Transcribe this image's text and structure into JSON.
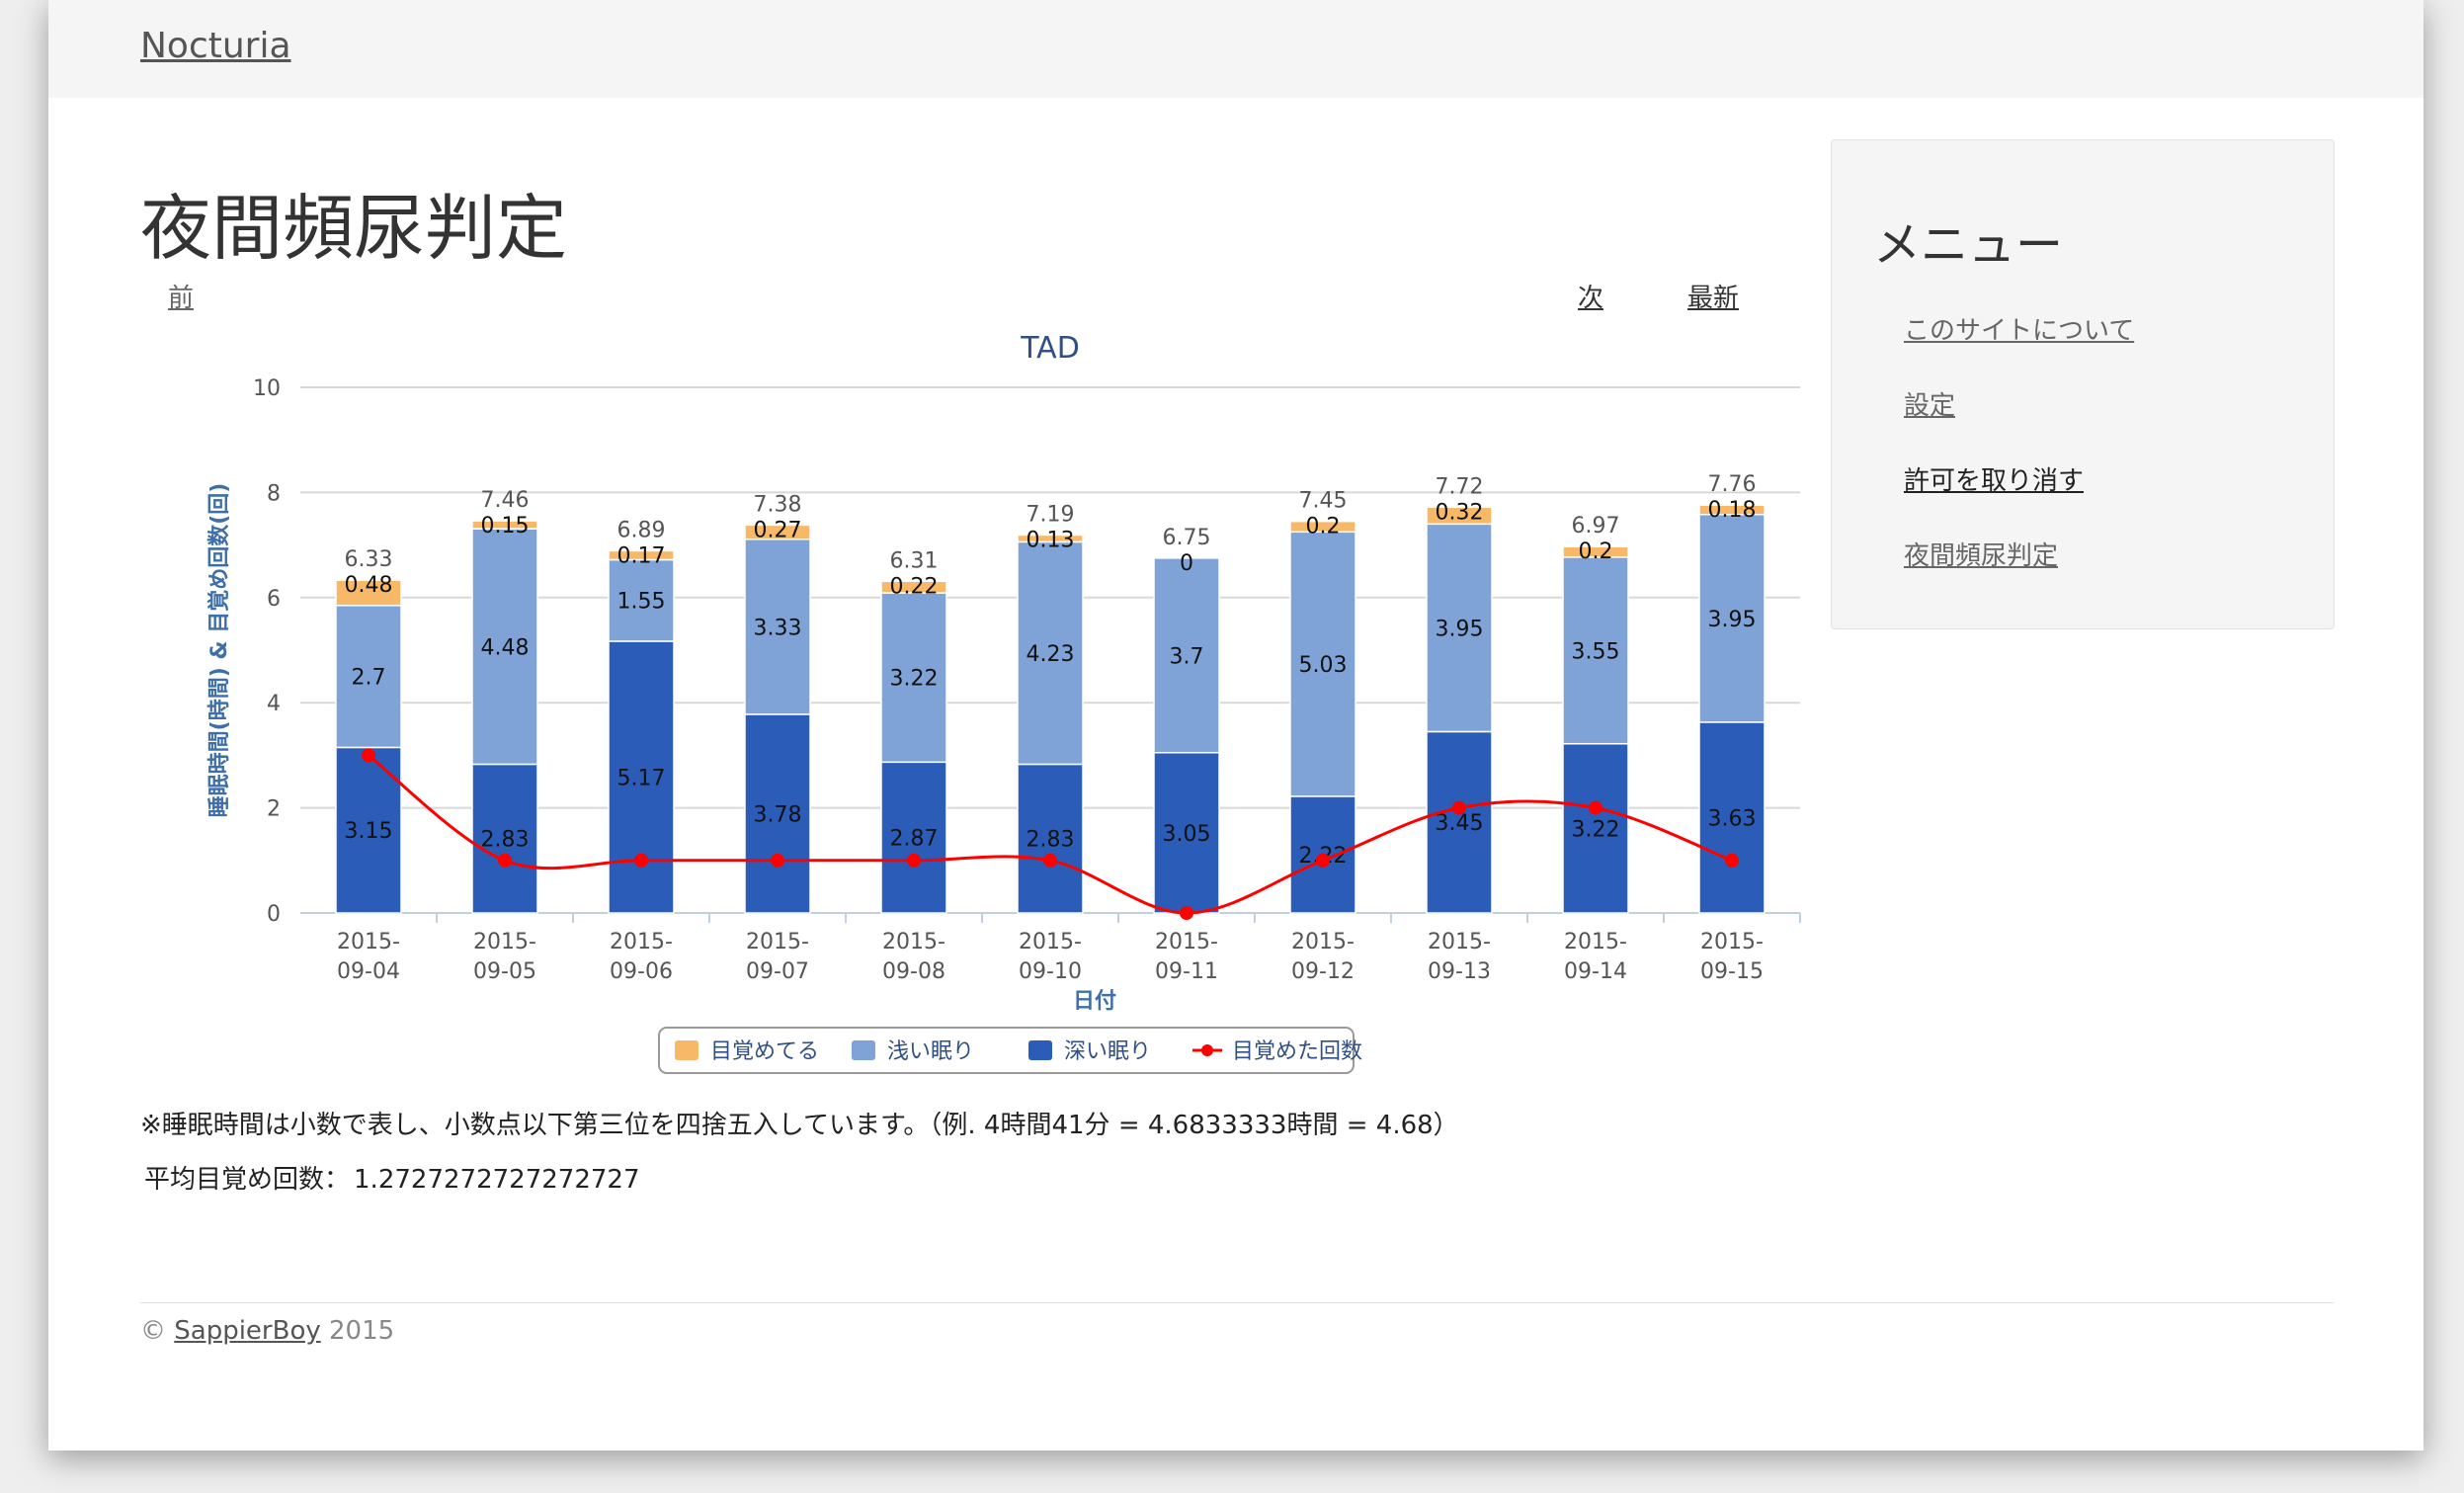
{
  "brand": "Nocturia",
  "page_title": "夜間頻尿判定",
  "nav": {
    "prev": "前",
    "next": "次",
    "latest": "最新"
  },
  "sidebar": {
    "title": "メニュー",
    "items": [
      {
        "label": "このサイトについて"
      },
      {
        "label": "設定"
      },
      {
        "label": "許可を取り消す"
      },
      {
        "label": "夜間頻尿判定"
      }
    ]
  },
  "note": "※睡眠時間は小数で表し、小数点以下第三位を四捨五入しています。（例. 4時間41分 = 4.6833333時間 = 4.68）",
  "average": {
    "label": "平均目覚め回数：",
    "value": "1.2727272727272727"
  },
  "footer": {
    "copyright": "©",
    "author": "SappierBoy",
    "year": "2015"
  },
  "colors": {
    "awake": "#f7b867",
    "light": "#7fa3d6",
    "deep": "#2a5cb8",
    "wake_line": "#ff0000",
    "title": "#2f4f86",
    "axis_label": "#3e6fa8"
  },
  "chart_data": {
    "type": "bar",
    "stacked": true,
    "title": "TAD",
    "xlabel": "日付",
    "ylabel": "睡眠時間(時間) & 目覚め回数(回)",
    "ylim": [
      0,
      10
    ],
    "yticks": [
      "0",
      "2",
      "4",
      "6",
      "8",
      "10"
    ],
    "grid": true,
    "legend_position": "bottom",
    "categories": [
      "2015-09-04",
      "2015-09-05",
      "2015-09-06",
      "2015-09-07",
      "2015-09-08",
      "2015-09-10",
      "2015-09-11",
      "2015-09-12",
      "2015-09-13",
      "2015-09-14",
      "2015-09-15"
    ],
    "category_lines": [
      [
        "2015-",
        "09-04"
      ],
      [
        "2015-",
        "09-05"
      ],
      [
        "2015-",
        "09-06"
      ],
      [
        "2015-",
        "09-07"
      ],
      [
        "2015-",
        "09-08"
      ],
      [
        "2015-",
        "09-10"
      ],
      [
        "2015-",
        "09-11"
      ],
      [
        "2015-",
        "09-12"
      ],
      [
        "2015-",
        "09-13"
      ],
      [
        "2015-",
        "09-14"
      ],
      [
        "2015-",
        "09-15"
      ]
    ],
    "totals": [
      "6.33",
      "7.46",
      "6.89",
      "7.38",
      "6.31",
      "7.19",
      "6.75",
      "7.45",
      "7.72",
      "6.97",
      "7.76"
    ],
    "series": [
      {
        "name": "深い眠り",
        "key": "deep",
        "values": [
          3.15,
          2.83,
          5.17,
          3.78,
          2.87,
          2.83,
          3.05,
          2.22,
          3.45,
          3.22,
          3.63
        ]
      },
      {
        "name": "浅い眠り",
        "key": "light",
        "values": [
          2.7,
          4.48,
          1.55,
          3.33,
          3.22,
          4.23,
          3.7,
          5.03,
          3.95,
          3.55,
          3.95
        ]
      },
      {
        "name": "目覚めてる",
        "key": "awake",
        "values": [
          0.48,
          0.15,
          0.17,
          0.27,
          0.22,
          0.13,
          0,
          0.2,
          0.32,
          0.2,
          0.18
        ]
      }
    ],
    "line_series": {
      "name": "目覚めた回数",
      "values": [
        3,
        1,
        1,
        1,
        1,
        1,
        0,
        1,
        2,
        2,
        1
      ]
    },
    "legend_order": [
      "目覚めてる",
      "浅い眠り",
      "深い眠り",
      "目覚めた回数"
    ]
  }
}
